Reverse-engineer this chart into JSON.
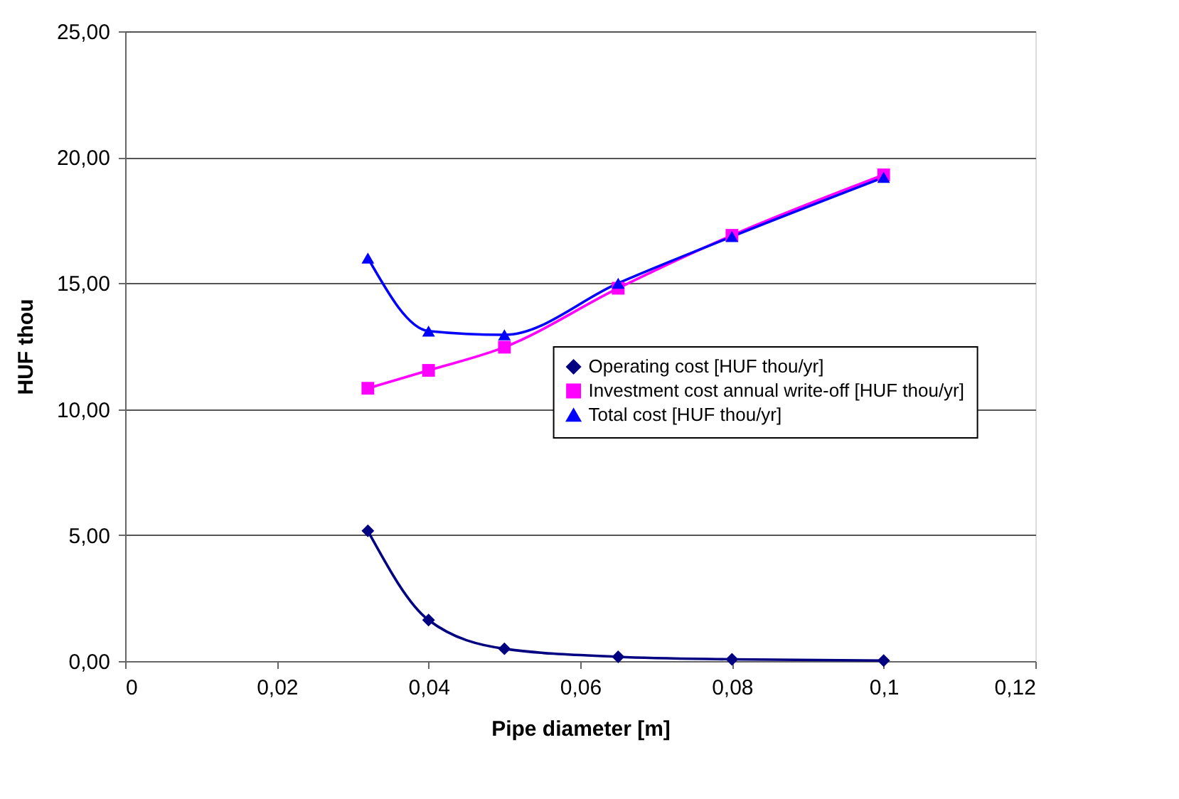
{
  "chart_data": {
    "type": "line",
    "xlabel": "Pipe diameter [m]",
    "ylabel": "HUF thou",
    "x": [
      0.032,
      0.04,
      0.05,
      0.065,
      0.08,
      0.1
    ],
    "series": [
      {
        "name": "Operating cost [HUF thou/yr]",
        "color": "#000080",
        "marker": "diamond",
        "values": [
          5.17,
          1.63,
          0.49,
          0.17,
          0.07,
          0.02
        ]
      },
      {
        "name": "Investment cost annual write-off [HUF thou/yr]",
        "color": "#ff00ff",
        "marker": "square",
        "values": [
          10.83,
          11.54,
          12.46,
          14.8,
          16.9,
          19.3
        ]
      },
      {
        "name": "Total cost [HUF thou/yr]",
        "color": "#0000ff",
        "marker": "triangle",
        "values": [
          16.0,
          13.1,
          12.95,
          15.0,
          16.85,
          19.2
        ]
      }
    ],
    "xlim": [
      0,
      0.12
    ],
    "ylim": [
      0,
      25
    ],
    "xticks": [
      {
        "value": 0,
        "label": "0"
      },
      {
        "value": 0.02,
        "label": "0,02"
      },
      {
        "value": 0.04,
        "label": "0,04"
      },
      {
        "value": 0.06,
        "label": "0,06"
      },
      {
        "value": 0.08,
        "label": "0,08"
      },
      {
        "value": 0.1,
        "label": "0,1"
      },
      {
        "value": 0.12,
        "label": "0,12"
      }
    ],
    "yticks": [
      {
        "value": 0,
        "label": "0,00"
      },
      {
        "value": 5,
        "label": "5,00"
      },
      {
        "value": 10,
        "label": "10,00"
      },
      {
        "value": 15,
        "label": "15,00"
      },
      {
        "value": 20,
        "label": "20,00"
      },
      {
        "value": 25,
        "label": "25,00"
      }
    ],
    "grid": "y",
    "legend": "right",
    "line_style": "solid"
  }
}
